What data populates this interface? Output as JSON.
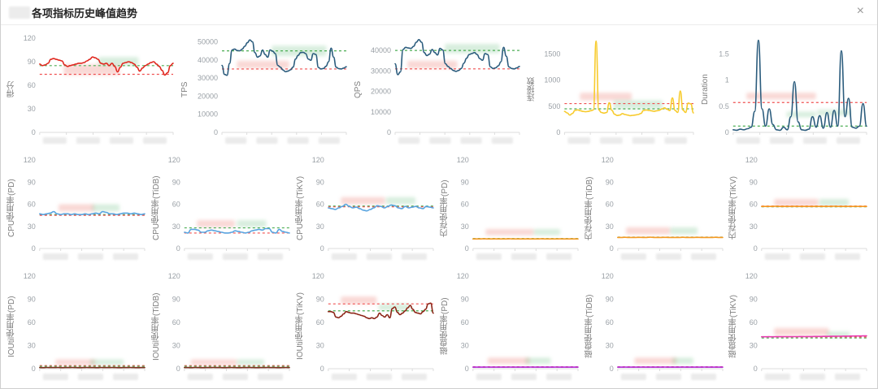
{
  "modal": {
    "title": "各项指标历史峰值趋势",
    "close_icon": "×",
    "redacted_prefix": "cluster-name-redacted"
  },
  "chart_type": "line",
  "charts": [
    {
      "name": "score",
      "ylabel": "得分",
      "ymax": 120,
      "yticks": [
        "0",
        "30",
        "60",
        "90",
        "120"
      ],
      "color": "#e0271e",
      "refs": [
        {
          "value": 85,
          "color": "#4cae54"
        },
        {
          "value": 74,
          "color": "#f05050"
        }
      ],
      "values": [
        87,
        85,
        86,
        88,
        93,
        94,
        93,
        92,
        91,
        86,
        84,
        85,
        86,
        87,
        88,
        88,
        89,
        91,
        93,
        96,
        95,
        93,
        88,
        87,
        88,
        85,
        88,
        84,
        77,
        83,
        88,
        89,
        90,
        89,
        87,
        83,
        78,
        82,
        85,
        87,
        89,
        90,
        87,
        84,
        79,
        73,
        76,
        85,
        88
      ],
      "redactions": [
        [
          18,
          28,
          42,
          11,
          "pink"
        ],
        [
          44,
          20,
          30,
          9,
          "green"
        ]
      ]
    },
    {
      "name": "tps",
      "ylabel": "TPS",
      "ymax": 52000,
      "yticks": [
        "0",
        "10000",
        "20000",
        "30000",
        "40000",
        "50000"
      ],
      "color": "#2b5c7d",
      "refs": [
        {
          "value": 45000,
          "color": "#4cae54"
        },
        {
          "value": 35000,
          "color": "#f05050"
        }
      ],
      "values": [
        37000,
        32000,
        31500,
        38000,
        45500,
        46000,
        45200,
        45000,
        46000,
        47500,
        49500,
        51000,
        50000,
        44000,
        41500,
        42200,
        45500,
        43000,
        41500,
        45500,
        44800,
        43500,
        37000,
        36000,
        34500,
        33500,
        33800,
        34500,
        36000,
        40500,
        42500,
        44000,
        44200,
        43500,
        40500,
        39800,
        43500,
        43000,
        35800,
        35000,
        35300,
        36500,
        39000,
        46500,
        41500,
        36000,
        35200,
        35000,
        35500,
        36200
      ],
      "redactions": [
        [
          40,
          8,
          44,
          11,
          "green"
        ],
        [
          12,
          24,
          42,
          8,
          "pink"
        ]
      ]
    },
    {
      "name": "qps",
      "ylabel": "QPS",
      "ymax": 46000,
      "yticks": [
        "0",
        "10000",
        "20000",
        "30000",
        "40000"
      ],
      "color": "#2b5c7d",
      "refs": [
        {
          "value": 40000,
          "color": "#4cae54"
        },
        {
          "value": 31000,
          "color": "#f05050"
        }
      ],
      "values": [
        33500,
        28200,
        29500,
        40500,
        41500,
        41200,
        41000,
        42000,
        44000,
        45300,
        44000,
        39000,
        37500,
        38200,
        40500,
        39000,
        37800,
        41000,
        40200,
        33500,
        32200,
        31200,
        30200,
        29800,
        30200,
        31200,
        33800,
        36200,
        38000,
        38500,
        39000,
        38000,
        36000,
        35200,
        38500,
        38000,
        32000,
        31200,
        31500,
        32500,
        34500,
        41500,
        37200,
        32000,
        31200,
        31000,
        31500,
        32200
      ],
      "redactions": [
        [
          40,
          6,
          44,
          10,
          "green"
        ],
        [
          10,
          24,
          40,
          8,
          "pink"
        ]
      ]
    },
    {
      "name": "connections",
      "ylabel": "连接数",
      "ymax": 1800,
      "yticks": [
        "0",
        "500",
        "1000",
        "1500"
      ],
      "color": "#f7cb2d",
      "refs": [
        {
          "value": 550,
          "color": "#f05050"
        },
        {
          "value": 450,
          "color": "#4cae54"
        }
      ],
      "values": [
        400,
        372,
        330,
        362,
        420,
        430,
        415,
        400,
        394,
        400,
        415,
        430,
        1745,
        430,
        380,
        368,
        380,
        565,
        420,
        348,
        322,
        330,
        358,
        342,
        330,
        320,
        326,
        332,
        342,
        362,
        418,
        428,
        420,
        412,
        402,
        412,
        422,
        448,
        468,
        440,
        418,
        658,
        420,
        380,
        792,
        425,
        380,
        560,
        545,
        372
      ],
      "redactions": [
        [
          12,
          58,
          40,
          8,
          "pink"
        ],
        [
          38,
          66,
          38,
          9,
          "green"
        ]
      ]
    },
    {
      "name": "duration",
      "ylabel": "Duration",
      "ymax": 1.8,
      "yticks": [
        "0",
        "0.5",
        "1",
        "1.5"
      ],
      "color": "#2b5c7d",
      "refs": [
        {
          "value": 0.57,
          "color": "#f05050"
        },
        {
          "value": 0.12,
          "color": "#4cae54"
        }
      ],
      "values": [
        0.05,
        0.04,
        0.06,
        0.05,
        0.07,
        0.1,
        0.4,
        1.76,
        0.45,
        0.12,
        0.45,
        0.15,
        0.05,
        0.04,
        0.1,
        0.05,
        0.3,
        0.97,
        0.2,
        0.05,
        0.04,
        0.06,
        0.3,
        0.1,
        0.32,
        0.08,
        0.38,
        0.1,
        0.42,
        0.12,
        1.56,
        0.3,
        0.65,
        0.1,
        0.08,
        0.12,
        0.55,
        0.12
      ],
      "redactions": [
        [
          10,
          58,
          52,
          7,
          "pink"
        ],
        [
          40,
          78,
          22,
          6,
          "green"
        ],
        [
          63,
          76,
          25,
          6,
          "green"
        ]
      ]
    },
    {
      "name": "cpu-pd",
      "ylabel": "CPU使用率(PD)",
      "ymax": 120,
      "yticks": [
        "0",
        "30",
        "60",
        "90",
        "120"
      ],
      "color": "#58a4e0",
      "refs": [
        {
          "value": 46,
          "color": "#4cae54"
        },
        {
          "value": 45,
          "color": "#f05050"
        }
      ],
      "values": [
        47,
        46,
        47,
        48,
        50,
        47,
        46,
        47,
        47,
        46,
        47,
        46,
        46,
        47,
        46,
        47,
        48,
        47,
        50,
        49,
        47,
        47,
        46,
        47,
        48,
        48,
        47,
        48,
        47,
        46,
        47
      ],
      "redactions": [
        [
          18,
          50,
          34,
          8,
          "pink"
        ],
        [
          50,
          50,
          26,
          8,
          "green"
        ]
      ]
    },
    {
      "name": "cpu-tidb",
      "ylabel": "CPU使用率(TiDB)",
      "ymax": 120,
      "yticks": [
        "0",
        "30",
        "60",
        "90",
        "120"
      ],
      "color": "#58a4e0",
      "refs": [
        {
          "value": 28,
          "color": "#4cae54"
        },
        {
          "value": 21,
          "color": "#f05050"
        }
      ],
      "values": [
        22,
        21,
        26,
        26,
        25,
        22,
        22,
        24,
        25,
        24,
        23,
        22,
        21,
        21,
        22,
        24,
        23,
        22,
        21,
        22,
        24,
        25,
        26,
        25,
        27,
        27,
        22,
        21,
        26,
        23,
        22,
        21
      ],
      "redactions": [
        [
          12,
          68,
          36,
          8,
          "pink"
        ],
        [
          50,
          68,
          28,
          8,
          "green"
        ]
      ]
    },
    {
      "name": "cpu-tikv",
      "ylabel": "CPU使用率(TiKV)",
      "ymax": 120,
      "yticks": [
        "0",
        "30",
        "60",
        "90",
        "120"
      ],
      "color": "#58a4e0",
      "refs": [
        {
          "value": 57.5,
          "color": "#4cae54"
        },
        {
          "value": 56.5,
          "color": "#f05050"
        }
      ],
      "values": [
        55,
        54,
        53,
        55,
        57,
        60,
        57,
        55,
        56,
        54,
        52,
        51,
        53,
        55,
        58,
        57,
        55,
        57,
        59,
        58,
        55,
        54,
        57,
        55,
        56,
        57,
        55,
        54,
        57,
        56,
        55
      ],
      "redactions": [
        [
          12,
          42,
          42,
          8,
          "pink"
        ],
        [
          55,
          42,
          28,
          8,
          "green"
        ]
      ]
    },
    {
      "name": "mem-pd",
      "ylabel": "内存使用率(PD)",
      "ymax": 120,
      "yticks": [
        "0",
        "30",
        "60",
        "90",
        "120"
      ],
      "color": "#f59a23",
      "refs": [
        {
          "value": 13.5,
          "color": "#4cae54"
        },
        {
          "value": 13,
          "color": "#f05050"
        }
      ],
      "values": [
        13,
        13,
        13,
        13.2,
        13,
        13,
        13.1,
        13,
        13,
        13,
        13.2,
        13,
        13,
        13,
        13,
        13.1,
        13,
        13,
        13,
        13.2,
        13,
        13,
        13,
        13,
        13.1,
        13,
        13,
        13,
        13,
        13
      ],
      "redactions": [
        [
          12,
          78,
          46,
          7,
          "pink"
        ],
        [
          58,
          78,
          25,
          7,
          "green"
        ]
      ]
    },
    {
      "name": "mem-tidb",
      "ylabel": "内存使用率(TiDB)",
      "ymax": 120,
      "yticks": [
        "0",
        "30",
        "60",
        "90",
        "120"
      ],
      "color": "#f59a23",
      "refs": [
        {
          "value": 15.5,
          "color": "#4cae54"
        },
        {
          "value": 15,
          "color": "#f05050"
        }
      ],
      "values": [
        15,
        15,
        15.2,
        15,
        15,
        15,
        15.1,
        15,
        15,
        15.3,
        15,
        15,
        15,
        15.1,
        15,
        15,
        15,
        15,
        15.2,
        15,
        15,
        15,
        15.1,
        15,
        15,
        15,
        15,
        15.2,
        15,
        15
      ],
      "redactions": [
        [
          8,
          76,
          42,
          8,
          "pink"
        ],
        [
          50,
          76,
          26,
          8,
          "green"
        ]
      ]
    },
    {
      "name": "mem-tikv",
      "ylabel": "内存使用率(TiKV)",
      "ymax": 120,
      "yticks": [
        "0",
        "30",
        "60",
        "90",
        "120"
      ],
      "color": "#f59a23",
      "refs": [
        {
          "value": 57.5,
          "color": "#f05050"
        },
        {
          "value": 56.5,
          "color": "#4cae54"
        }
      ],
      "values": [
        57,
        57,
        57,
        57,
        57.2,
        57,
        57,
        57,
        57,
        57.1,
        57,
        57,
        57,
        57,
        57,
        57.1,
        57,
        57,
        57,
        57,
        57.2,
        57,
        57,
        57,
        57,
        57,
        57.1,
        57,
        57,
        57
      ],
      "redactions": [
        [
          12,
          44,
          42,
          8,
          "pink"
        ],
        [
          55,
          44,
          28,
          8,
          "green"
        ]
      ]
    },
    {
      "name": "ioutil-pd",
      "ylabel": "IOUtil使用率(PD)",
      "ymax": 120,
      "yticks": [
        "0",
        "30",
        "60",
        "90",
        "120"
      ],
      "color": "#7d2f1d",
      "refs": [
        {
          "value": 4,
          "color": "#f05050"
        },
        {
          "value": 3,
          "color": "#4cae54"
        }
      ],
      "values": [
        1.5,
        1.4,
        1.6,
        1.5,
        1.5,
        1.6,
        1.4,
        1.5,
        1.5,
        1.6,
        1.5,
        1.4,
        1.5,
        1.6,
        1.5,
        1.5,
        1.4,
        1.6,
        1.5,
        1.5,
        1.6,
        1.5,
        1.4,
        1.5,
        1.5,
        1.6,
        1.5,
        1.4,
        1.5,
        1.5
      ],
      "redactions": [
        [
          15,
          90,
          38,
          6,
          "pink"
        ],
        [
          48,
          90,
          32,
          6,
          "green"
        ]
      ]
    },
    {
      "name": "ioutil-tidb",
      "ylabel": "IOUtil使用率(TiDB)",
      "ymax": 120,
      "yticks": [
        "0",
        "30",
        "60",
        "90",
        "120"
      ],
      "color": "#7d2f1d",
      "refs": [
        {
          "value": 4,
          "color": "#f05050"
        },
        {
          "value": 3,
          "color": "#4cae54"
        }
      ],
      "values": [
        1.5,
        1.5,
        1.4,
        1.6,
        1.5,
        1.4,
        1.5,
        1.5,
        1.6,
        1.5,
        1.5,
        1.4,
        1.5,
        1.6,
        1.5,
        1.4,
        1.5,
        1.5,
        1.6,
        1.5,
        1.4,
        1.5,
        1.5,
        1.6,
        1.5,
        1.5,
        1.4,
        1.5,
        1.6,
        1.5
      ],
      "redactions": [
        [
          6,
          90,
          44,
          6,
          "pink"
        ],
        [
          50,
          90,
          26,
          6,
          "green"
        ]
      ]
    },
    {
      "name": "ioutil-tikv",
      "ylabel": "IOUtil使用率(TiKV)",
      "ymax": 120,
      "yticks": [
        "0",
        "30",
        "60",
        "90",
        "120"
      ],
      "color": "#8c2416",
      "refs": [
        {
          "value": 84,
          "color": "#f05050"
        },
        {
          "value": 75,
          "color": "#4cae54"
        }
      ],
      "values": [
        74,
        74,
        73,
        67,
        66,
        68,
        71,
        74,
        73,
        72,
        72,
        71,
        70,
        69,
        68,
        66,
        65,
        66,
        65,
        67,
        72,
        69,
        67,
        70,
        66,
        78,
        80,
        73,
        70,
        72,
        75,
        79,
        82,
        77,
        73,
        72,
        71,
        74,
        77,
        84,
        85,
        72
      ],
      "redactions": [
        [
          12,
          22,
          34,
          8,
          "pink"
        ],
        [
          48,
          30,
          30,
          7,
          "green"
        ]
      ]
    },
    {
      "name": "disk-pd",
      "ylabel": "磁盘使用率(PD)",
      "ymax": 120,
      "yticks": [
        "0",
        "30",
        "60",
        "90",
        "120"
      ],
      "color": "#b429d8",
      "refs": [
        {
          "value": 2.5,
          "color": "#f05050"
        },
        {
          "value": 2,
          "color": "#4cae54"
        }
      ],
      "values": [
        2,
        2,
        2,
        2,
        2.1,
        2,
        2,
        2,
        2,
        2,
        2.1,
        2,
        2,
        2,
        2,
        2,
        2.1,
        2,
        2,
        2,
        2,
        2,
        2,
        2.1,
        2,
        2,
        2,
        2,
        2,
        2
      ],
      "redactions": [
        [
          14,
          88,
          40,
          7,
          "pink"
        ],
        [
          50,
          88,
          24,
          7,
          "green"
        ]
      ]
    },
    {
      "name": "disk-tidb",
      "ylabel": "磁盘使用率(TiDB)",
      "ymax": 120,
      "yticks": [
        "0",
        "30",
        "60",
        "90",
        "120"
      ],
      "color": "#b429d8",
      "refs": [
        {
          "value": 2.5,
          "color": "#f05050"
        },
        {
          "value": 2,
          "color": "#4cae54"
        }
      ],
      "values": [
        2,
        2,
        2.1,
        2,
        2,
        2,
        2,
        2.1,
        2,
        2,
        2,
        2,
        2,
        2.1,
        2,
        2,
        2,
        2,
        2.1,
        2,
        2,
        2,
        2,
        2,
        2.1,
        2,
        2,
        2,
        2,
        2
      ],
      "redactions": [
        [
          16,
          88,
          40,
          7,
          "pink"
        ],
        [
          52,
          88,
          20,
          7,
          "green"
        ]
      ]
    },
    {
      "name": "disk-tikv",
      "ylabel": "磁盘使用率(TiKV)",
      "ymax": 120,
      "yticks": [
        "0",
        "30",
        "60",
        "90",
        "120"
      ],
      "color": "#e83bb0",
      "refs": [
        {
          "value": 41.2,
          "color": "#f05050"
        },
        {
          "value": 39.8,
          "color": "#4cae54"
        }
      ],
      "values": [
        41.4,
        41.4,
        41.5,
        41.4,
        41.5,
        41.5,
        41.5,
        41.6,
        41.5,
        41.6,
        41.6,
        41.7,
        41.6,
        41.7,
        41.7,
        41.8,
        41.8,
        41.9,
        41.9,
        42,
        42,
        42.1,
        42.1,
        42.2,
        42.2,
        42.3,
        42.4,
        42.4,
        42.5,
        42.6
      ],
      "redactions": [
        [
          12,
          56,
          52,
          8,
          "pink"
        ],
        [
          62,
          60,
          22,
          6,
          "green"
        ]
      ]
    }
  ]
}
